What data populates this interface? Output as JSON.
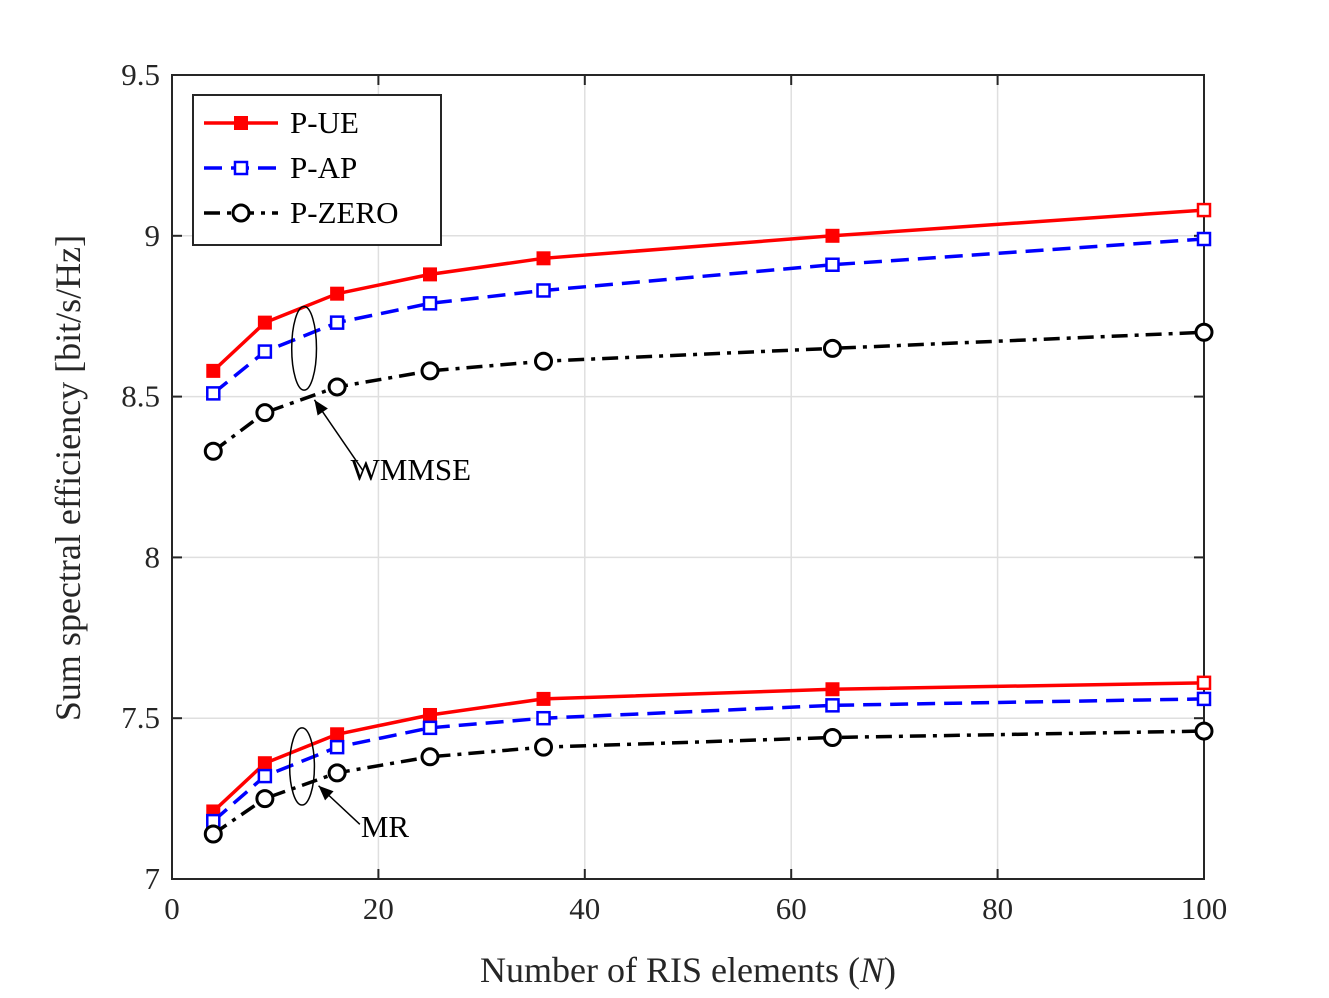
{
  "chart_data": {
    "type": "line",
    "xlabel": "Number of RIS elements (",
    "xlabel_var": "N",
    "xlabel_close": ")",
    "ylabel": "Sum spectral efficiency [bit/s/Hz]",
    "xlim": [
      0,
      100
    ],
    "ylim": [
      7,
      9.5
    ],
    "xticks": [
      0,
      20,
      40,
      60,
      80,
      100
    ],
    "xtick_labels": [
      "0",
      "20",
      "40",
      "60",
      "80",
      "100"
    ],
    "yticks": [
      7,
      7.5,
      8,
      8.5,
      9,
      9.5
    ],
    "ytick_labels": [
      "7",
      "7.5",
      "8",
      "8.5",
      "9",
      "9.5"
    ],
    "grid": true,
    "legend_position": "top-left",
    "x": [
      4,
      9,
      16,
      25,
      36,
      64,
      100
    ],
    "series": [
      {
        "name": "P-UE",
        "group": "WMMSE",
        "color": "#ff0000",
        "marker": "filled-square",
        "dash": "solid",
        "values": [
          8.58,
          8.73,
          8.82,
          8.88,
          8.93,
          9.0,
          9.08
        ]
      },
      {
        "name": "P-AP",
        "group": "WMMSE",
        "color": "#0000ff",
        "marker": "open-square",
        "dash": "dashed",
        "values": [
          8.51,
          8.64,
          8.73,
          8.79,
          8.83,
          8.91,
          8.99
        ]
      },
      {
        "name": "P-ZERO",
        "group": "WMMSE",
        "color": "#000000",
        "marker": "open-circle",
        "dash": "dashdot",
        "values": [
          8.33,
          8.45,
          8.53,
          8.58,
          8.61,
          8.65,
          8.7
        ]
      },
      {
        "name": "P-UE",
        "group": "MR",
        "color": "#ff0000",
        "marker": "filled-square",
        "dash": "solid",
        "values": [
          7.21,
          7.36,
          7.45,
          7.51,
          7.56,
          7.59,
          7.61
        ]
      },
      {
        "name": "P-AP",
        "group": "MR",
        "color": "#0000ff",
        "marker": "open-square",
        "dash": "dashed",
        "values": [
          7.18,
          7.32,
          7.41,
          7.47,
          7.5,
          7.54,
          7.56
        ]
      },
      {
        "name": "P-ZERO",
        "group": "MR",
        "color": "#000000",
        "marker": "open-circle",
        "dash": "dashdot",
        "values": [
          7.14,
          7.25,
          7.33,
          7.38,
          7.41,
          7.44,
          7.46
        ]
      }
    ],
    "annotations": [
      {
        "text": "WMMSE",
        "group": "WMMSE",
        "ellipse_center": [
          12.8,
          8.65
        ],
        "ellipse_rx_data": 1.2,
        "ellipse_ry_data": 0.13,
        "arrow_from": [
          18.5,
          8.27
        ],
        "arrow_to": [
          13.8,
          8.49
        ],
        "text_pos": [
          17.3,
          8.24
        ]
      },
      {
        "text": "MR",
        "group": "MR",
        "ellipse_center": [
          12.6,
          7.35
        ],
        "ellipse_rx_data": 1.2,
        "ellipse_ry_data": 0.12,
        "arrow_from": [
          18.2,
          7.17
        ],
        "arrow_to": [
          14.2,
          7.29
        ],
        "text_pos": [
          18.3,
          7.13
        ]
      }
    ]
  }
}
